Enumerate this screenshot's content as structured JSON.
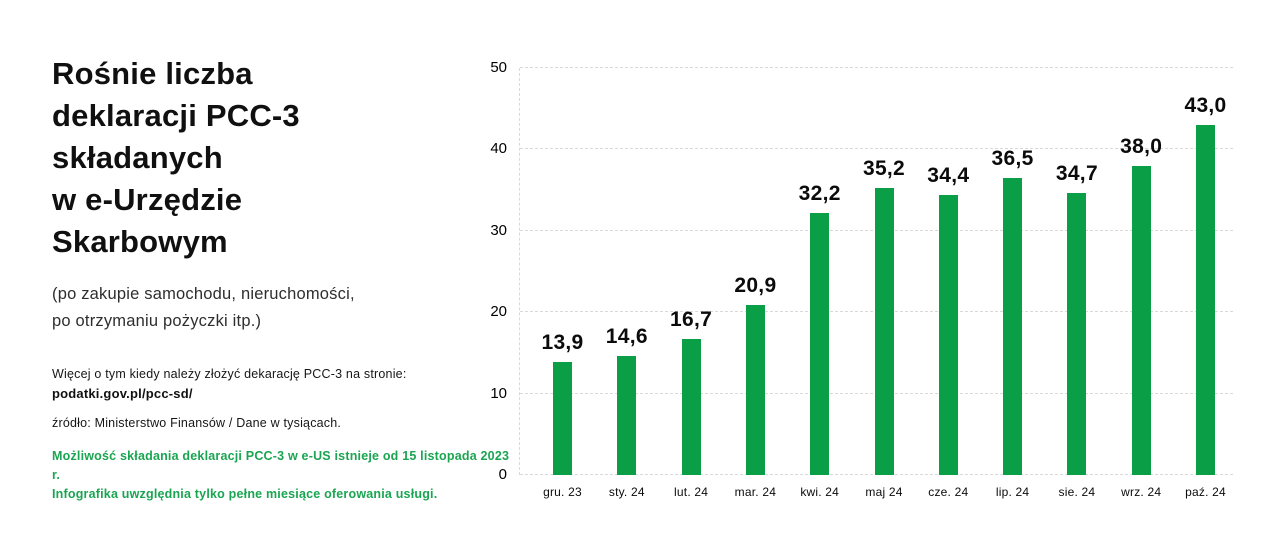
{
  "page": {
    "background": "#ffffff",
    "title_color": "#101010"
  },
  "left_panel": {
    "title_lines": [
      "Rośnie liczba",
      "deklaracji PCC-3",
      "składanych",
      "w e-Urzędzie",
      "Skarbowym"
    ],
    "subtitle_lines": [
      "(po zakupie samochodu, nieruchomości,",
      "po otrzymaniu pożyczki itp.)"
    ],
    "info_text": "Więcej o tym kiedy należy złożyć dekarację PCC-3 na stronie:",
    "info_link": "podatki.gov.pl/pcc-sd/",
    "source_text": "źródło: Ministerstwo Finansów / Dane w tysiącach.",
    "note_lines": [
      "Możliwość składania deklaracji PCC-3 w e-US istnieje od 15 listopada 2023 r.",
      "Infografika uwzględnia tylko pełne miesiące oferowania usługi."
    ],
    "note_color": "#1aa551"
  },
  "chart_data": {
    "type": "bar",
    "categories": [
      "gru. 23",
      "sty. 24",
      "lut. 24",
      "mar. 24",
      "kwi. 24",
      "maj 24",
      "cze. 24",
      "lip. 24",
      "sie. 24",
      "wrz. 24",
      "paź. 24"
    ],
    "values": [
      13.9,
      14.6,
      16.7,
      20.9,
      32.2,
      35.2,
      34.4,
      36.5,
      34.7,
      38.0,
      43.0
    ],
    "value_labels": [
      "13,9",
      "14,6",
      "16,7",
      "20,9",
      "32,2",
      "35,2",
      "34,4",
      "36,5",
      "34,7",
      "38,0",
      "43,0"
    ],
    "title": "",
    "xlabel": "",
    "ylabel": "",
    "ylim": [
      0,
      50
    ],
    "yticks": [
      0,
      10,
      20,
      30,
      40,
      50
    ],
    "grid": true,
    "grid_color": "#d9d9d9",
    "legend": "none",
    "bar_color": "#0a9e46"
  }
}
